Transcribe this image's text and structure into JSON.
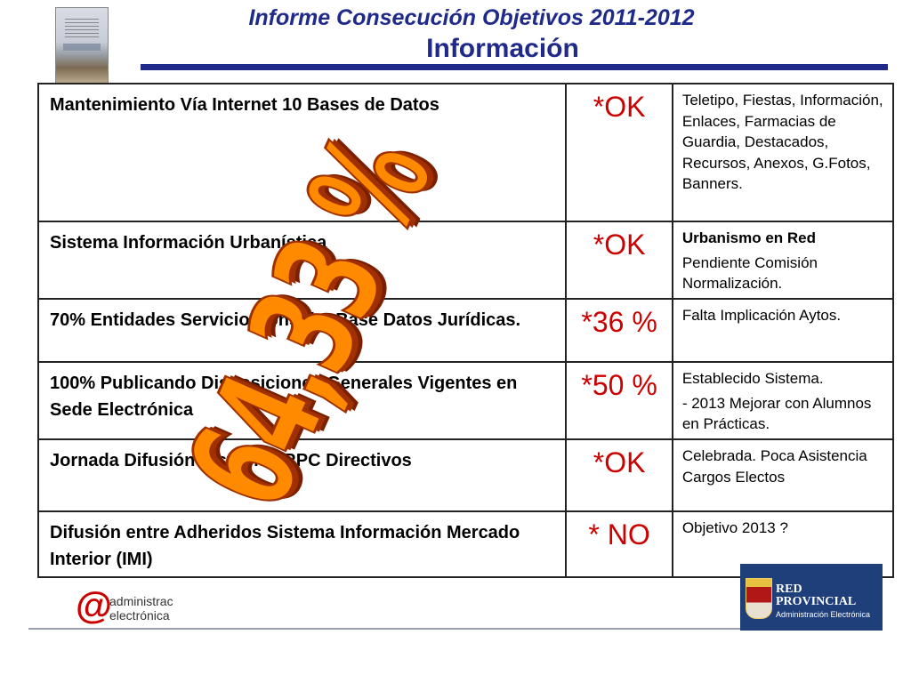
{
  "header": {
    "title": "Informe Consecución Objetivos 2011-2012",
    "subtitle": "Información"
  },
  "table": {
    "rows": [
      {
        "objective": "Mantenimiento Vía Internet 10 Bases de Datos",
        "status": "*OK",
        "notes": [
          "Teletipo, Fiestas, Información, Enlaces, Farmacias de Guardia, Destacados, Recursos, Anexos, G.Fotos, Banners."
        ],
        "notes_bold": ""
      },
      {
        "objective": "Sistema Información Urbanística",
        "status": "*OK",
        "notes_bold": "Urbanismo en Red",
        "notes": [
          "Pendiente Comisión Normalización."
        ]
      },
      {
        "objective": "70% Entidades Servicio Consulta Base Datos Jurídicas.",
        "status": "*36 %",
        "notes_bold": "",
        "notes": [
          "Falta Implicación Aytos."
        ]
      },
      {
        "objective": "100% Publicando Disposiciones Generales Vigentes en Sede Electrónica",
        "status": "*50 %",
        "notes_bold": "",
        "notes": [
          "Establecido Sistema.",
          "- 2013 Mejorar con Alumnos en Prácticas."
        ]
      },
      {
        "objective": "Jornada Difusión Sistemas RPC Directivos",
        "status": "*OK",
        "notes_bold": "",
        "notes": [
          "Celebrada. Poca Asistencia Cargos Electos"
        ]
      },
      {
        "objective": "Difusión entre Adheridos Sistema Información Mercado Interior (IMI)",
        "status": "* NO",
        "notes_bold": "",
        "notes": [
          "Objetivo 2013 ?"
        ]
      }
    ]
  },
  "overlay": {
    "percentage": "64,33 %"
  },
  "logos": {
    "left_line1": "administrac",
    "left_line2": "electrónica",
    "right_line1": "RED",
    "right_line2": "PROVINCIAL",
    "right_line3": "Administración Electrónica"
  },
  "colors": {
    "title": "#1f2a8a",
    "status": "#cc0000",
    "overlay": "#ff8a00"
  }
}
